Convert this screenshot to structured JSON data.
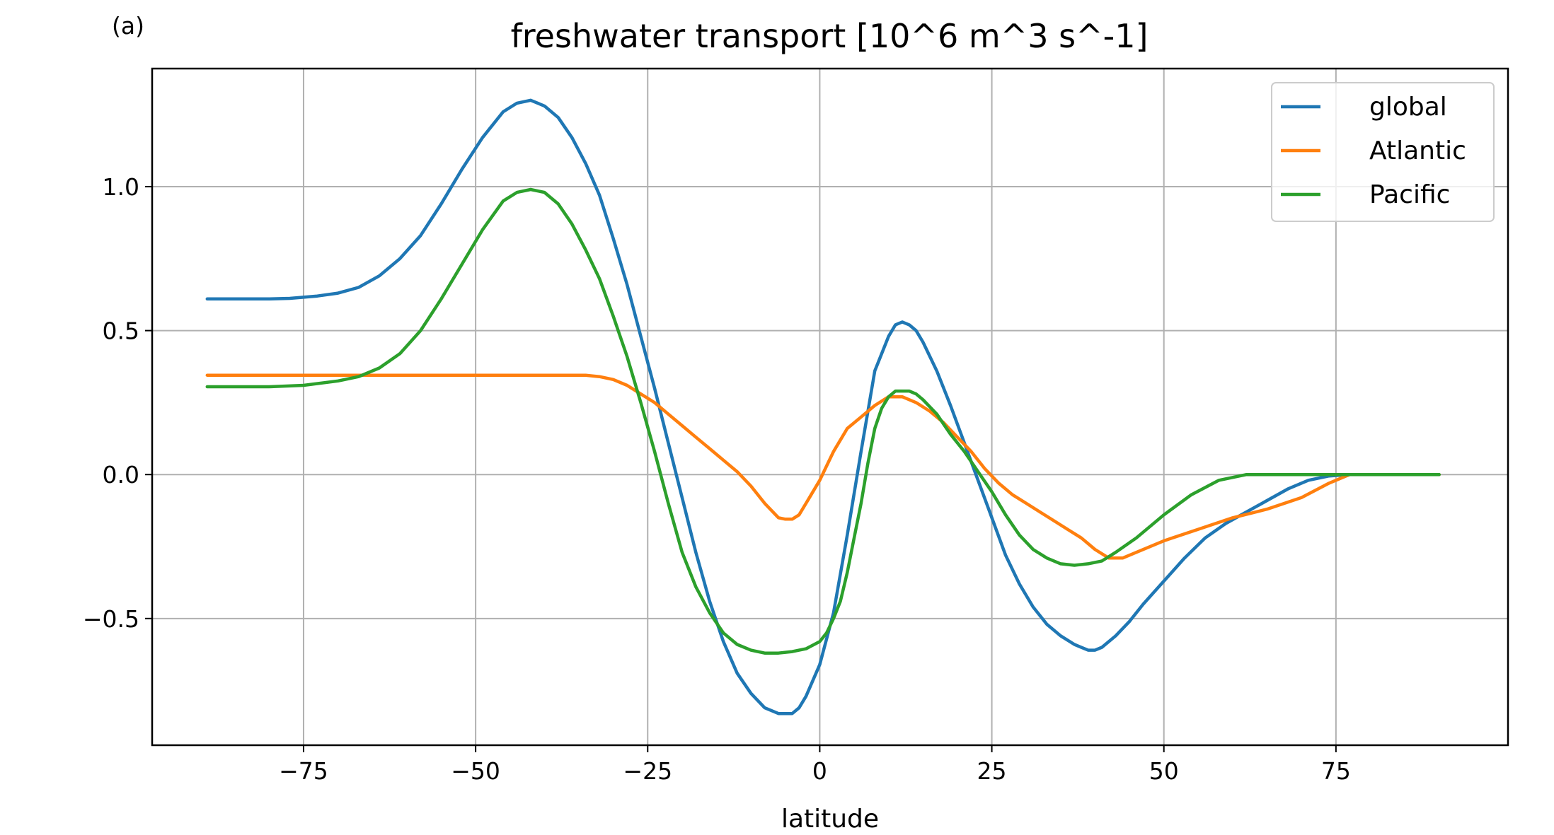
{
  "panel_label": "(a)",
  "colors": {
    "global": "#1f77b4",
    "Atlantic": "#ff7f0e",
    "Pacific": "#2ca02c",
    "grid": "#b0b0b0"
  },
  "chart_data": {
    "type": "line",
    "title": "freshwater transport [10^6 m^3 s^-1]",
    "xlabel": "latitude",
    "ylabel": "",
    "xlim": [
      -97,
      100
    ],
    "ylim": [
      -0.94,
      1.41
    ],
    "xticks": [
      -75,
      -50,
      -25,
      0,
      25,
      50,
      75
    ],
    "xtick_labels": [
      "−75",
      "−50",
      "−25",
      "0",
      "25",
      "50",
      "75"
    ],
    "yticks": [
      -0.5,
      0.0,
      0.5,
      1.0
    ],
    "ytick_labels": [
      "−0.5",
      "0.0",
      "0.5",
      "1.0"
    ],
    "grid": true,
    "legend_position": "top-right",
    "series": [
      {
        "name": "global",
        "x": [
          -89,
          -80,
          -77,
          -73,
          -70,
          -67,
          -64,
          -61,
          -58,
          -55,
          -52,
          -49,
          -46,
          -44,
          -42,
          -40,
          -38,
          -36,
          -34,
          -32,
          -30,
          -28,
          -26,
          -24,
          -22,
          -20,
          -18,
          -16,
          -14,
          -12,
          -10,
          -8,
          -6,
          -5,
          -4,
          -3,
          -2,
          0,
          2,
          4,
          6,
          8,
          10,
          11,
          12,
          13,
          14,
          15,
          17,
          19,
          21,
          23,
          25,
          27,
          29,
          31,
          33,
          35,
          37,
          39,
          40,
          41,
          43,
          45,
          47,
          50,
          53,
          56,
          59,
          62,
          65,
          68,
          71,
          74,
          77,
          80,
          85,
          90
        ],
        "y": [
          0.61,
          0.61,
          0.612,
          0.62,
          0.63,
          0.65,
          0.69,
          0.75,
          0.83,
          0.94,
          1.06,
          1.17,
          1.26,
          1.29,
          1.3,
          1.28,
          1.24,
          1.17,
          1.08,
          0.97,
          0.82,
          0.66,
          0.48,
          0.3,
          0.11,
          -0.08,
          -0.27,
          -0.44,
          -0.58,
          -0.69,
          -0.76,
          -0.81,
          -0.83,
          -0.83,
          -0.83,
          -0.81,
          -0.77,
          -0.66,
          -0.48,
          -0.21,
          0.08,
          0.36,
          0.48,
          0.52,
          0.53,
          0.52,
          0.5,
          0.46,
          0.36,
          0.24,
          0.11,
          -0.02,
          -0.15,
          -0.28,
          -0.38,
          -0.46,
          -0.52,
          -0.56,
          -0.59,
          -0.61,
          -0.61,
          -0.6,
          -0.56,
          -0.51,
          -0.45,
          -0.37,
          -0.29,
          -0.22,
          -0.17,
          -0.13,
          -0.09,
          -0.05,
          -0.02,
          -0.005,
          0.0,
          0.0,
          0.0,
          0.0
        ]
      },
      {
        "name": "Atlantic",
        "x": [
          -89,
          -80,
          -70,
          -60,
          -50,
          -40,
          -34,
          -32,
          -30,
          -28,
          -26,
          -24,
          -22,
          -20,
          -18,
          -16,
          -14,
          -12,
          -10,
          -8,
          -6,
          -5,
          -4,
          -3,
          -2,
          0,
          1,
          2,
          3,
          4,
          6,
          8,
          10,
          12,
          14,
          16,
          18,
          20,
          22,
          24,
          26,
          28,
          30,
          32,
          34,
          36,
          38,
          40,
          42,
          44,
          46,
          50,
          55,
          60,
          65,
          70,
          74,
          77,
          80,
          85,
          90
        ],
        "y": [
          0.345,
          0.345,
          0.345,
          0.345,
          0.345,
          0.345,
          0.345,
          0.34,
          0.33,
          0.31,
          0.28,
          0.25,
          0.21,
          0.17,
          0.13,
          0.09,
          0.05,
          0.01,
          -0.04,
          -0.1,
          -0.15,
          -0.155,
          -0.155,
          -0.14,
          -0.1,
          -0.02,
          0.03,
          0.08,
          0.12,
          0.16,
          0.2,
          0.24,
          0.27,
          0.27,
          0.25,
          0.22,
          0.18,
          0.13,
          0.08,
          0.02,
          -0.03,
          -0.07,
          -0.1,
          -0.13,
          -0.16,
          -0.19,
          -0.22,
          -0.26,
          -0.29,
          -0.29,
          -0.27,
          -0.23,
          -0.19,
          -0.15,
          -0.12,
          -0.08,
          -0.03,
          0.0,
          0.0,
          0.0,
          0.0
        ]
      },
      {
        "name": "Pacific",
        "x": [
          -89,
          -80,
          -75,
          -70,
          -67,
          -64,
          -61,
          -58,
          -55,
          -52,
          -49,
          -46,
          -44,
          -42,
          -40,
          -38,
          -36,
          -34,
          -32,
          -30,
          -28,
          -26,
          -24,
          -22,
          -20,
          -18,
          -16,
          -14,
          -12,
          -10,
          -8,
          -6,
          -4,
          -2,
          0,
          1,
          2,
          3,
          4,
          5,
          6,
          7,
          8,
          9,
          10,
          11,
          12,
          13,
          14,
          15,
          17,
          19,
          21,
          23,
          25,
          27,
          29,
          31,
          33,
          35,
          37,
          39,
          41,
          43,
          46,
          50,
          54,
          58,
          62,
          66,
          70,
          75,
          80,
          85,
          90
        ],
        "y": [
          0.305,
          0.305,
          0.31,
          0.325,
          0.34,
          0.37,
          0.42,
          0.5,
          0.61,
          0.73,
          0.85,
          0.95,
          0.98,
          0.99,
          0.98,
          0.94,
          0.87,
          0.78,
          0.68,
          0.55,
          0.41,
          0.25,
          0.08,
          -0.1,
          -0.27,
          -0.39,
          -0.48,
          -0.55,
          -0.59,
          -0.61,
          -0.62,
          -0.62,
          -0.615,
          -0.605,
          -0.58,
          -0.55,
          -0.5,
          -0.44,
          -0.34,
          -0.22,
          -0.1,
          0.04,
          0.16,
          0.23,
          0.27,
          0.29,
          0.29,
          0.29,
          0.28,
          0.26,
          0.21,
          0.14,
          0.08,
          0.01,
          -0.06,
          -0.14,
          -0.21,
          -0.26,
          -0.29,
          -0.31,
          -0.315,
          -0.31,
          -0.3,
          -0.27,
          -0.22,
          -0.14,
          -0.07,
          -0.02,
          0.0,
          0.0,
          0.0,
          0.0,
          0.0,
          0.0,
          0.0
        ]
      }
    ]
  }
}
